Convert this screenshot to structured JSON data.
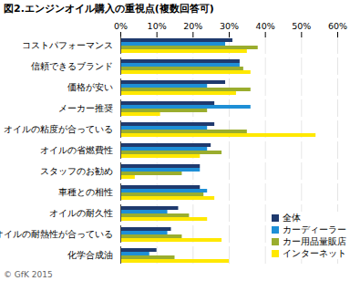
{
  "chart_data": {
    "type": "bar",
    "orientation": "horizontal",
    "title": "図2.エンジンオイル購入の重視点(複数回答可)",
    "caption": "© GfK 2015",
    "categories": [
      "コストパフォーマンス",
      "信頼できるブランド",
      "価格が安い",
      "メーカー推奨",
      "オイルの粘度が合っている",
      "オイルの省燃費性",
      "スタッフのお勧め",
      "車種との相性",
      "オイルの耐久性",
      "オイルの耐熱性が合っている",
      "化学合成油"
    ],
    "series": [
      {
        "name": "全体",
        "color": "#1f3a6e",
        "values": [
          31,
          33,
          29,
          26,
          26,
          25,
          22,
          22,
          16,
          14,
          10
        ]
      },
      {
        "name": "カーディーラー",
        "color": "#1e8fd6",
        "values": [
          29,
          33,
          24,
          36,
          24,
          24,
          22,
          24,
          13,
          13,
          8
        ]
      },
      {
        "name": "カー用品量販店",
        "color": "#9aad2e",
        "values": [
          38,
          34,
          36,
          24,
          35,
          28,
          17,
          23,
          19,
          17,
          15
        ]
      },
      {
        "name": "インターネット",
        "color": "#ffe800",
        "values": [
          35,
          36,
          32,
          11,
          54,
          22,
          4,
          26,
          24,
          28,
          30
        ]
      }
    ],
    "xlim": [
      0,
      60
    ],
    "xticks": [
      {
        "value": 0,
        "label": "0%"
      },
      {
        "value": 10,
        "label": "10%"
      },
      {
        "value": 20,
        "label": "20%"
      },
      {
        "value": 30,
        "label": "30%"
      },
      {
        "value": 40,
        "label": "40%"
      },
      {
        "value": 50,
        "label": "50%"
      },
      {
        "value": 60,
        "label": "60%"
      }
    ],
    "grid": true,
    "legend": "bottom-right"
  }
}
